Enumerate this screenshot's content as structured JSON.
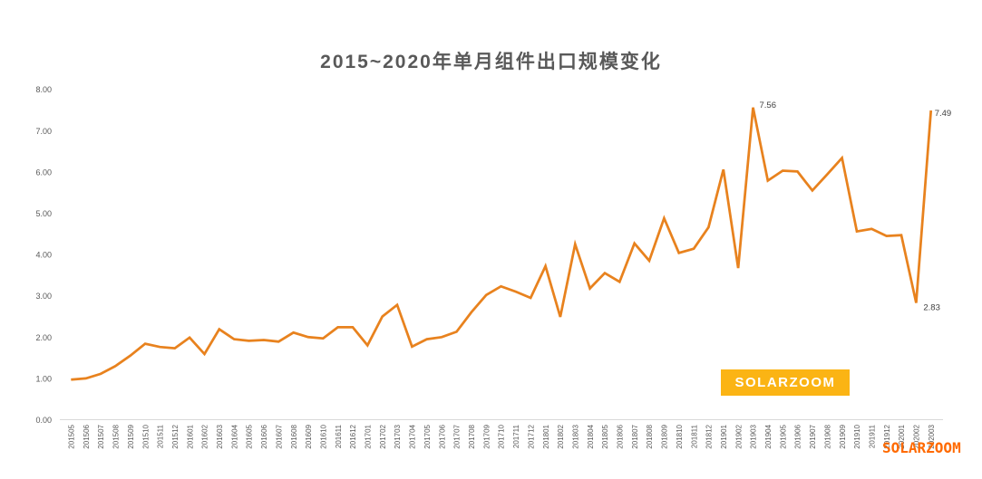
{
  "title": "2015~2020年单月组件出口规模变化",
  "watermarks": {
    "badge_label": "SOLARZOOM",
    "corner_label": "SOLARZOOM"
  },
  "colors": {
    "line": "#E8821E",
    "title_text": "#595959",
    "axis_text": "#595959",
    "axis_line": "#D9D9D9",
    "data_label_text": "#404040",
    "badge_bg": "#FBB414",
    "badge_text": "#FFFFFF",
    "watermark_text": "#FF6A00"
  },
  "chart_data": {
    "type": "line",
    "title": "2015~2020年单月组件出口规模变化",
    "categories": [
      "201505",
      "201506",
      "201507",
      "201508",
      "201509",
      "201510",
      "201511",
      "201512",
      "201601",
      "201602",
      "201603",
      "201604",
      "201605",
      "201606",
      "201607",
      "201608",
      "201609",
      "201610",
      "201611",
      "201612",
      "201701",
      "201702",
      "201703",
      "201704",
      "201705",
      "201706",
      "201707",
      "201708",
      "201709",
      "201710",
      "201711",
      "201712",
      "201801",
      "201802",
      "201803",
      "201804",
      "201805",
      "201806",
      "201807",
      "201808",
      "201809",
      "201810",
      "201811",
      "201812",
      "201901",
      "201902",
      "201903",
      "201904",
      "201905",
      "201906",
      "201907",
      "201908",
      "201909",
      "201910",
      "201911",
      "201912",
      "202001",
      "202002",
      "202003"
    ],
    "values": [
      0.97,
      1.0,
      1.11,
      1.3,
      1.55,
      1.84,
      1.76,
      1.73,
      1.99,
      1.59,
      2.19,
      1.95,
      1.91,
      1.93,
      1.89,
      2.11,
      2.0,
      1.97,
      2.24,
      2.24,
      1.8,
      2.5,
      2.78,
      1.77,
      1.95,
      2.0,
      2.13,
      2.6,
      3.02,
      3.23,
      3.1,
      2.95,
      3.72,
      2.49,
      4.25,
      3.18,
      3.55,
      3.34,
      4.27,
      3.85,
      4.88,
      4.04,
      4.14,
      4.66,
      6.06,
      3.67,
      7.56,
      5.79,
      6.03,
      6.01,
      5.55,
      5.94,
      6.34,
      4.56,
      4.62,
      4.45,
      4.47,
      2.83,
      7.49
    ],
    "ylim": [
      0,
      8
    ],
    "ytick_step": 1,
    "ytick_labels": [
      "0.00",
      "1.00",
      "2.00",
      "3.00",
      "4.00",
      "5.00",
      "6.00",
      "7.00",
      "8.00"
    ],
    "grid": "off",
    "legend": "none",
    "line_color": "#E8821E",
    "point_labels": [
      {
        "category": "201903",
        "text": "7.56"
      },
      {
        "category": "202002",
        "text": "2.83"
      },
      {
        "category": "202003",
        "text": "7.49"
      }
    ]
  }
}
